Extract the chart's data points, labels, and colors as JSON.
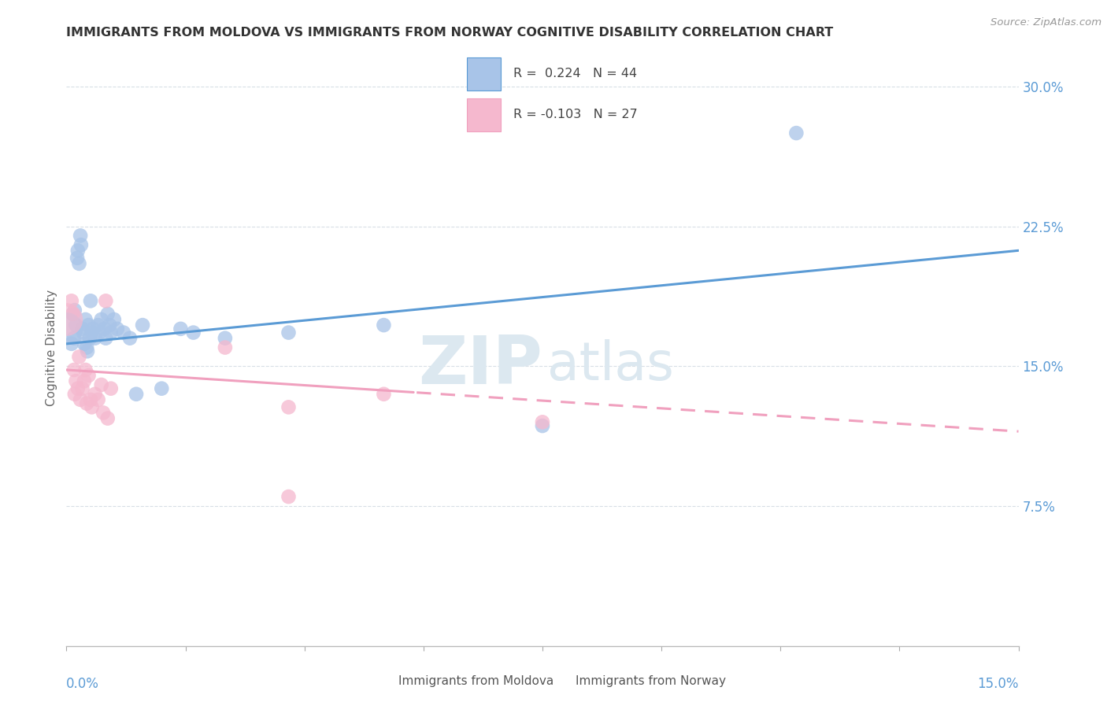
{
  "title": "IMMIGRANTS FROM MOLDOVA VS IMMIGRANTS FROM NORWAY COGNITIVE DISABILITY CORRELATION CHART",
  "source": "Source: ZipAtlas.com",
  "ylabel": "Cognitive Disability",
  "xlim": [
    0.0,
    15.0
  ],
  "ylim": [
    0.0,
    32.0
  ],
  "yticks": [
    7.5,
    15.0,
    22.5,
    30.0
  ],
  "ytick_labels": [
    "7.5%",
    "15.0%",
    "22.5%",
    "30.0%"
  ],
  "xtick_positions": [
    0,
    1.875,
    3.75,
    5.625,
    7.5,
    9.375,
    11.25,
    13.125,
    15.0
  ],
  "moldova_R": 0.224,
  "moldova_N": 44,
  "norway_R": -0.103,
  "norway_N": 27,
  "moldova_color": "#a8c4e8",
  "norway_color": "#f5b8ce",
  "moldova_line_color": "#5b9bd5",
  "norway_line_color": "#f0a0be",
  "moldova_scatter": [
    [
      0.08,
      16.2
    ],
    [
      0.1,
      17.8
    ],
    [
      0.12,
      16.5
    ],
    [
      0.13,
      18.0
    ],
    [
      0.15,
      17.2
    ],
    [
      0.17,
      20.8
    ],
    [
      0.18,
      21.2
    ],
    [
      0.2,
      20.5
    ],
    [
      0.22,
      22.0
    ],
    [
      0.23,
      21.5
    ],
    [
      0.25,
      17.0
    ],
    [
      0.27,
      16.8
    ],
    [
      0.28,
      16.2
    ],
    [
      0.3,
      17.5
    ],
    [
      0.32,
      16.0
    ],
    [
      0.33,
      15.8
    ],
    [
      0.35,
      17.2
    ],
    [
      0.37,
      16.5
    ],
    [
      0.38,
      18.5
    ],
    [
      0.4,
      16.8
    ],
    [
      0.42,
      17.0
    ],
    [
      0.45,
      16.5
    ],
    [
      0.5,
      17.2
    ],
    [
      0.52,
      16.8
    ],
    [
      0.55,
      17.5
    ],
    [
      0.6,
      17.0
    ],
    [
      0.62,
      16.5
    ],
    [
      0.65,
      17.8
    ],
    [
      0.68,
      17.2
    ],
    [
      0.7,
      16.8
    ],
    [
      0.75,
      17.5
    ],
    [
      0.8,
      17.0
    ],
    [
      0.9,
      16.8
    ],
    [
      1.0,
      16.5
    ],
    [
      1.1,
      13.5
    ],
    [
      1.2,
      17.2
    ],
    [
      1.5,
      13.8
    ],
    [
      1.8,
      17.0
    ],
    [
      2.0,
      16.8
    ],
    [
      2.5,
      16.5
    ],
    [
      3.5,
      16.8
    ],
    [
      5.0,
      17.2
    ],
    [
      7.5,
      11.8
    ],
    [
      11.5,
      27.5
    ]
  ],
  "moldova_big_bubble": [
    0.0,
    17.0
  ],
  "norway_scatter": [
    [
      0.08,
      18.5
    ],
    [
      0.1,
      17.8
    ],
    [
      0.12,
      14.8
    ],
    [
      0.13,
      13.5
    ],
    [
      0.15,
      14.2
    ],
    [
      0.18,
      13.8
    ],
    [
      0.2,
      15.5
    ],
    [
      0.22,
      13.2
    ],
    [
      0.25,
      13.8
    ],
    [
      0.28,
      14.2
    ],
    [
      0.3,
      14.8
    ],
    [
      0.32,
      13.0
    ],
    [
      0.35,
      14.5
    ],
    [
      0.38,
      13.2
    ],
    [
      0.4,
      12.8
    ],
    [
      0.45,
      13.5
    ],
    [
      0.5,
      13.2
    ],
    [
      0.55,
      14.0
    ],
    [
      0.58,
      12.5
    ],
    [
      0.62,
      18.5
    ],
    [
      0.65,
      12.2
    ],
    [
      0.7,
      13.8
    ],
    [
      2.5,
      16.0
    ],
    [
      3.5,
      12.8
    ],
    [
      5.0,
      13.5
    ],
    [
      7.5,
      12.0
    ],
    [
      3.5,
      8.0
    ]
  ],
  "norway_big_bubble": [
    0.0,
    17.5
  ],
  "norway_trend_solid_end": 5.5,
  "background_color": "#ffffff",
  "watermark_color": "#dce8f0",
  "grid_color": "#d8dfe6"
}
